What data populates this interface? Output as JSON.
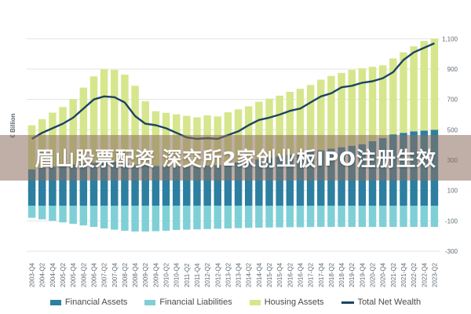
{
  "banner": {
    "text": "眉山股票配资 深交所2家创业板IPO注册生效"
  },
  "colors": {
    "financial_assets": "#2c7fa0",
    "financial_liabilities": "#7fd0d6",
    "housing_assets": "#d6e68c",
    "net_wealth": "#1d4461",
    "grid": "#e3e3e3"
  },
  "chart_data": {
    "type": "bar",
    "ylabel": "€ Billion",
    "ylim": [
      -300,
      1200
    ],
    "yticks": [
      -300,
      -100,
      100,
      300,
      500,
      700,
      900,
      1100
    ],
    "ytick_labels": [
      "-300",
      "-100",
      "100",
      "300",
      "500",
      "700",
      "900",
      "1,100"
    ],
    "x": [
      "2003-Q4",
      "2004-Q2",
      "2004-Q4",
      "2005-Q2",
      "2005-Q4",
      "2006-Q2",
      "2006-Q4",
      "2007-Q2",
      "2007-Q4",
      "2008-Q2",
      "2008-Q4",
      "2009-Q2",
      "2009-Q4",
      "2010-Q2",
      "2010-Q4",
      "2011-Q2",
      "2011-Q4",
      "2012-Q2",
      "2012-Q4",
      "2013-Q2",
      "2013-Q4",
      "2014-Q2",
      "2014-Q4",
      "2015-Q2",
      "2015-Q4",
      "2016-Q2",
      "2016-Q4",
      "2017-Q2",
      "2017-Q4",
      "2018-Q2",
      "2018-Q4",
      "2019-Q2",
      "2019-Q4",
      "2020-Q2",
      "2020-Q4",
      "2021-Q2",
      "2021-Q4",
      "2022-Q2",
      "2022-Q4",
      "2023-Q2"
    ],
    "series": [
      {
        "name": "Financial Assets",
        "kind": "bar",
        "values": [
          240,
          250,
          258,
          265,
          272,
          278,
          282,
          288,
          290,
          283,
          270,
          268,
          262,
          262,
          262,
          262,
          262,
          265,
          268,
          275,
          285,
          295,
          305,
          315,
          325,
          335,
          345,
          355,
          365,
          375,
          385,
          395,
          405,
          425,
          445,
          470,
          480,
          490,
          495,
          500
        ]
      },
      {
        "name": "Financial Liabilities",
        "kind": "bar",
        "values": [
          -80,
          -90,
          -100,
          -110,
          -120,
          -130,
          -140,
          -150,
          -158,
          -165,
          -170,
          -170,
          -168,
          -165,
          -160,
          -158,
          -156,
          -154,
          -152,
          -150,
          -148,
          -146,
          -145,
          -144,
          -143,
          -142,
          -142,
          -141,
          -140,
          -140,
          -140,
          -140,
          -140,
          -140,
          -140,
          -140,
          -140,
          -140,
          -140,
          -140
        ]
      },
      {
        "name": "Housing Assets",
        "kind": "bar",
        "values": [
          290,
          320,
          355,
          385,
          430,
          500,
          570,
          610,
          605,
          580,
          520,
          420,
          360,
          350,
          340,
          330,
          320,
          330,
          320,
          340,
          350,
          360,
          380,
          390,
          400,
          415,
          425,
          440,
          465,
          480,
          490,
          500,
          500,
          490,
          480,
          500,
          530,
          560,
          590,
          600
        ]
      },
      {
        "name": "Total Net Wealth",
        "kind": "line",
        "values": [
          440,
          480,
          510,
          540,
          580,
          640,
          700,
          720,
          715,
          680,
          590,
          540,
          530,
          510,
          480,
          450,
          440,
          445,
          440,
          465,
          490,
          530,
          565,
          580,
          600,
          625,
          640,
          680,
          720,
          740,
          780,
          790,
          810,
          820,
          840,
          880,
          960,
          1010,
          1040,
          1070
        ]
      }
    ]
  },
  "legend": [
    {
      "label": "Financial Assets",
      "key": "financial_assets",
      "kind": "box"
    },
    {
      "label": "Financial Liabilities",
      "key": "financial_liabilities",
      "kind": "box"
    },
    {
      "label": "Housing Assets",
      "key": "housing_assets",
      "kind": "box"
    },
    {
      "label": "Total Net Wealth",
      "key": "net_wealth",
      "kind": "line"
    }
  ]
}
